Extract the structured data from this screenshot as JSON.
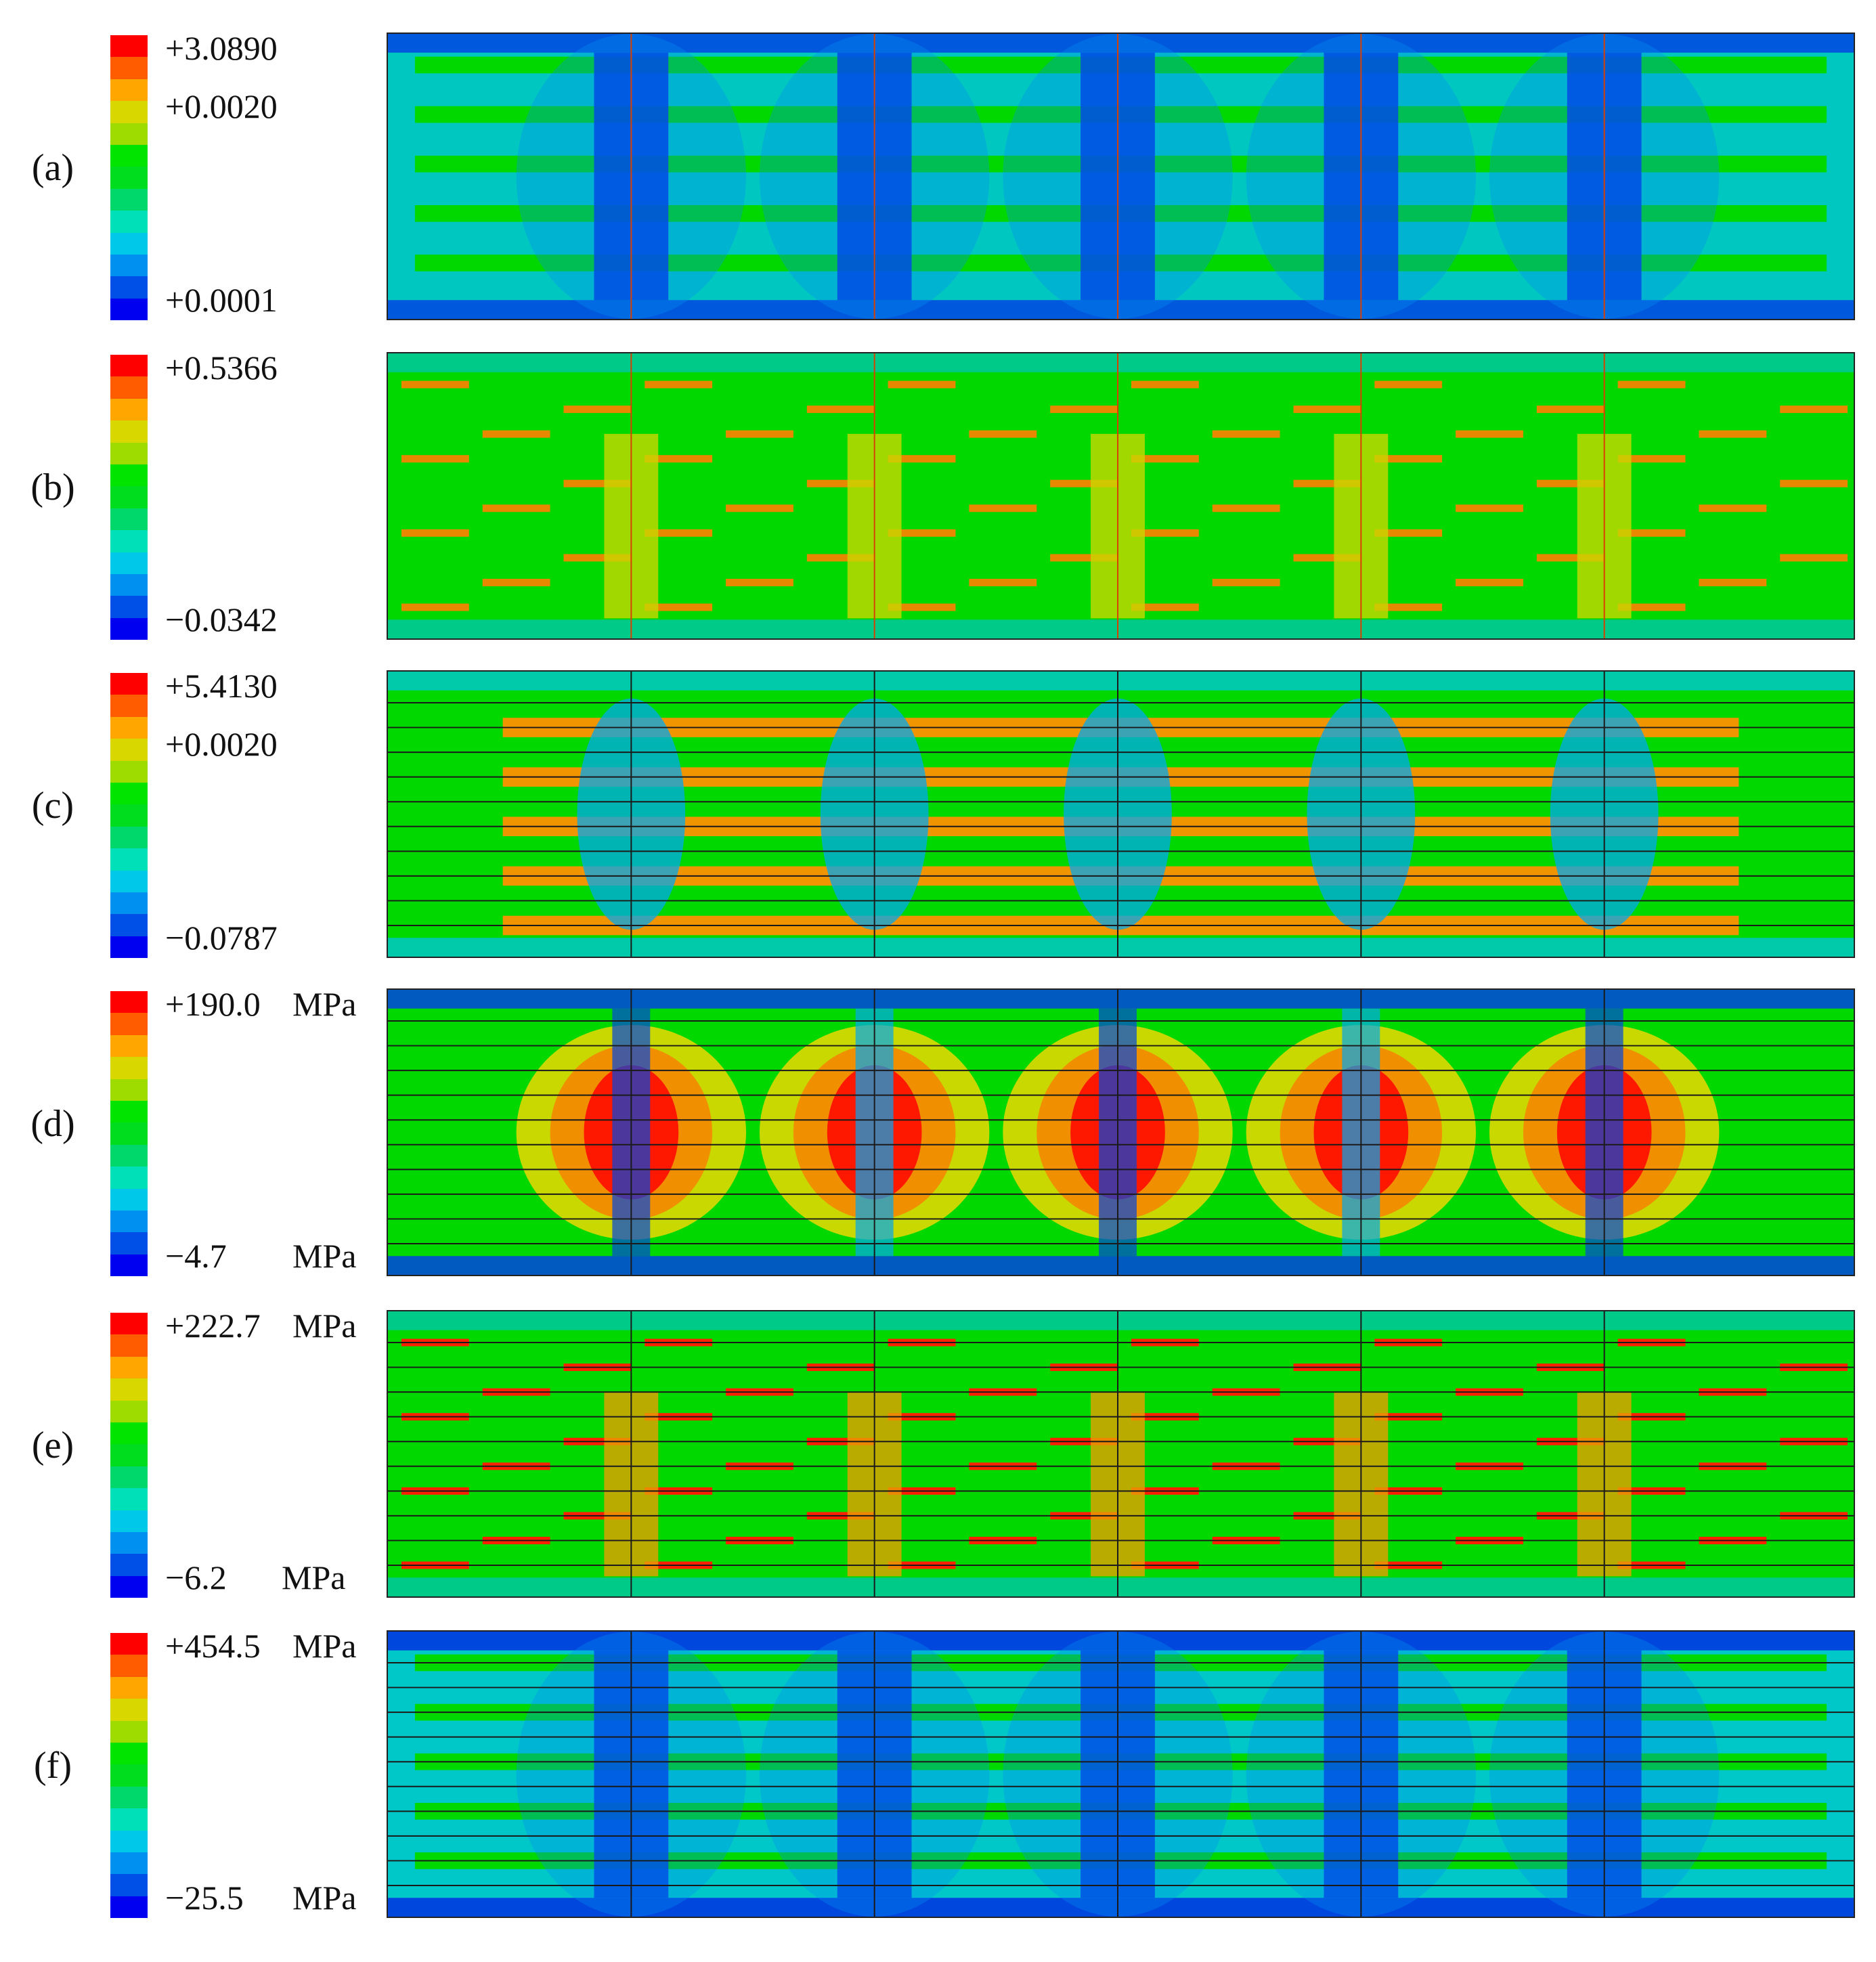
{
  "figure": {
    "colormap": [
      "#ff0000",
      "#ff5c00",
      "#ffa600",
      "#d8d800",
      "#9edc00",
      "#00e400",
      "#00dc1e",
      "#00d86c",
      "#00e0b8",
      "#00c8e8",
      "#0090f0",
      "#0050e8",
      "#0000f0"
    ],
    "panels": [
      {
        "id": "a",
        "label": "(a)",
        "legend": {
          "values": [
            "+3.0890",
            "+0.0020",
            "+0.0001"
          ],
          "units": []
        },
        "contour": {
          "background": "#00c8c0",
          "pattern": "bands",
          "lines": "none",
          "stripe": "#00d800",
          "hot": "#0028e0",
          "edge": "#0044e0"
        }
      },
      {
        "id": "b",
        "label": "(b)",
        "legend": {
          "values": [
            "+0.5366",
            "−0.0342"
          ],
          "units": []
        },
        "contour": {
          "background": "#00d800",
          "pattern": "dashes",
          "lines": "none",
          "stripe": "#e88800",
          "hot": "#c8d800",
          "edge": "#00c8a0"
        }
      },
      {
        "id": "c",
        "label": "(c)",
        "legend": {
          "values": [
            "+5.4130",
            "+0.0020",
            "−0.0787"
          ],
          "units": []
        },
        "contour": {
          "background": "#00d800",
          "pattern": "stripes",
          "lines": "dark",
          "stripe": "#f09400",
          "hot": "#00a8f0",
          "edge": "#00c8c8"
        }
      },
      {
        "id": "d",
        "label": "(d)",
        "legend": {
          "values": [
            "+190.0",
            "−4.7"
          ],
          "units": [
            "MPa",
            "MPa"
          ]
        },
        "contour": {
          "background": "#00d800",
          "pattern": "blobs",
          "lines": "dark",
          "stripe": "#ff4000",
          "hot": "#ff1800",
          "edge": "#0044e0"
        }
      },
      {
        "id": "e",
        "label": "(e)",
        "legend": {
          "values": [
            "+222.7",
            "−6.2"
          ],
          "units": [
            "MPa",
            "MPa"
          ]
        },
        "contour": {
          "background": "#00d800",
          "pattern": "dashes",
          "lines": "dark",
          "stripe": "#ff2000",
          "hot": "#e8a000",
          "edge": "#00c8a0"
        }
      },
      {
        "id": "f",
        "label": "(f)",
        "legend": {
          "values": [
            "+454.5",
            "−25.5"
          ],
          "units": [
            "MPa",
            "MPa"
          ]
        },
        "contour": {
          "background": "#00c8c8",
          "pattern": "bands",
          "lines": "dark",
          "stripe": "#00d800",
          "hot": "#0030e0",
          "edge": "#0030e0"
        }
      }
    ]
  }
}
